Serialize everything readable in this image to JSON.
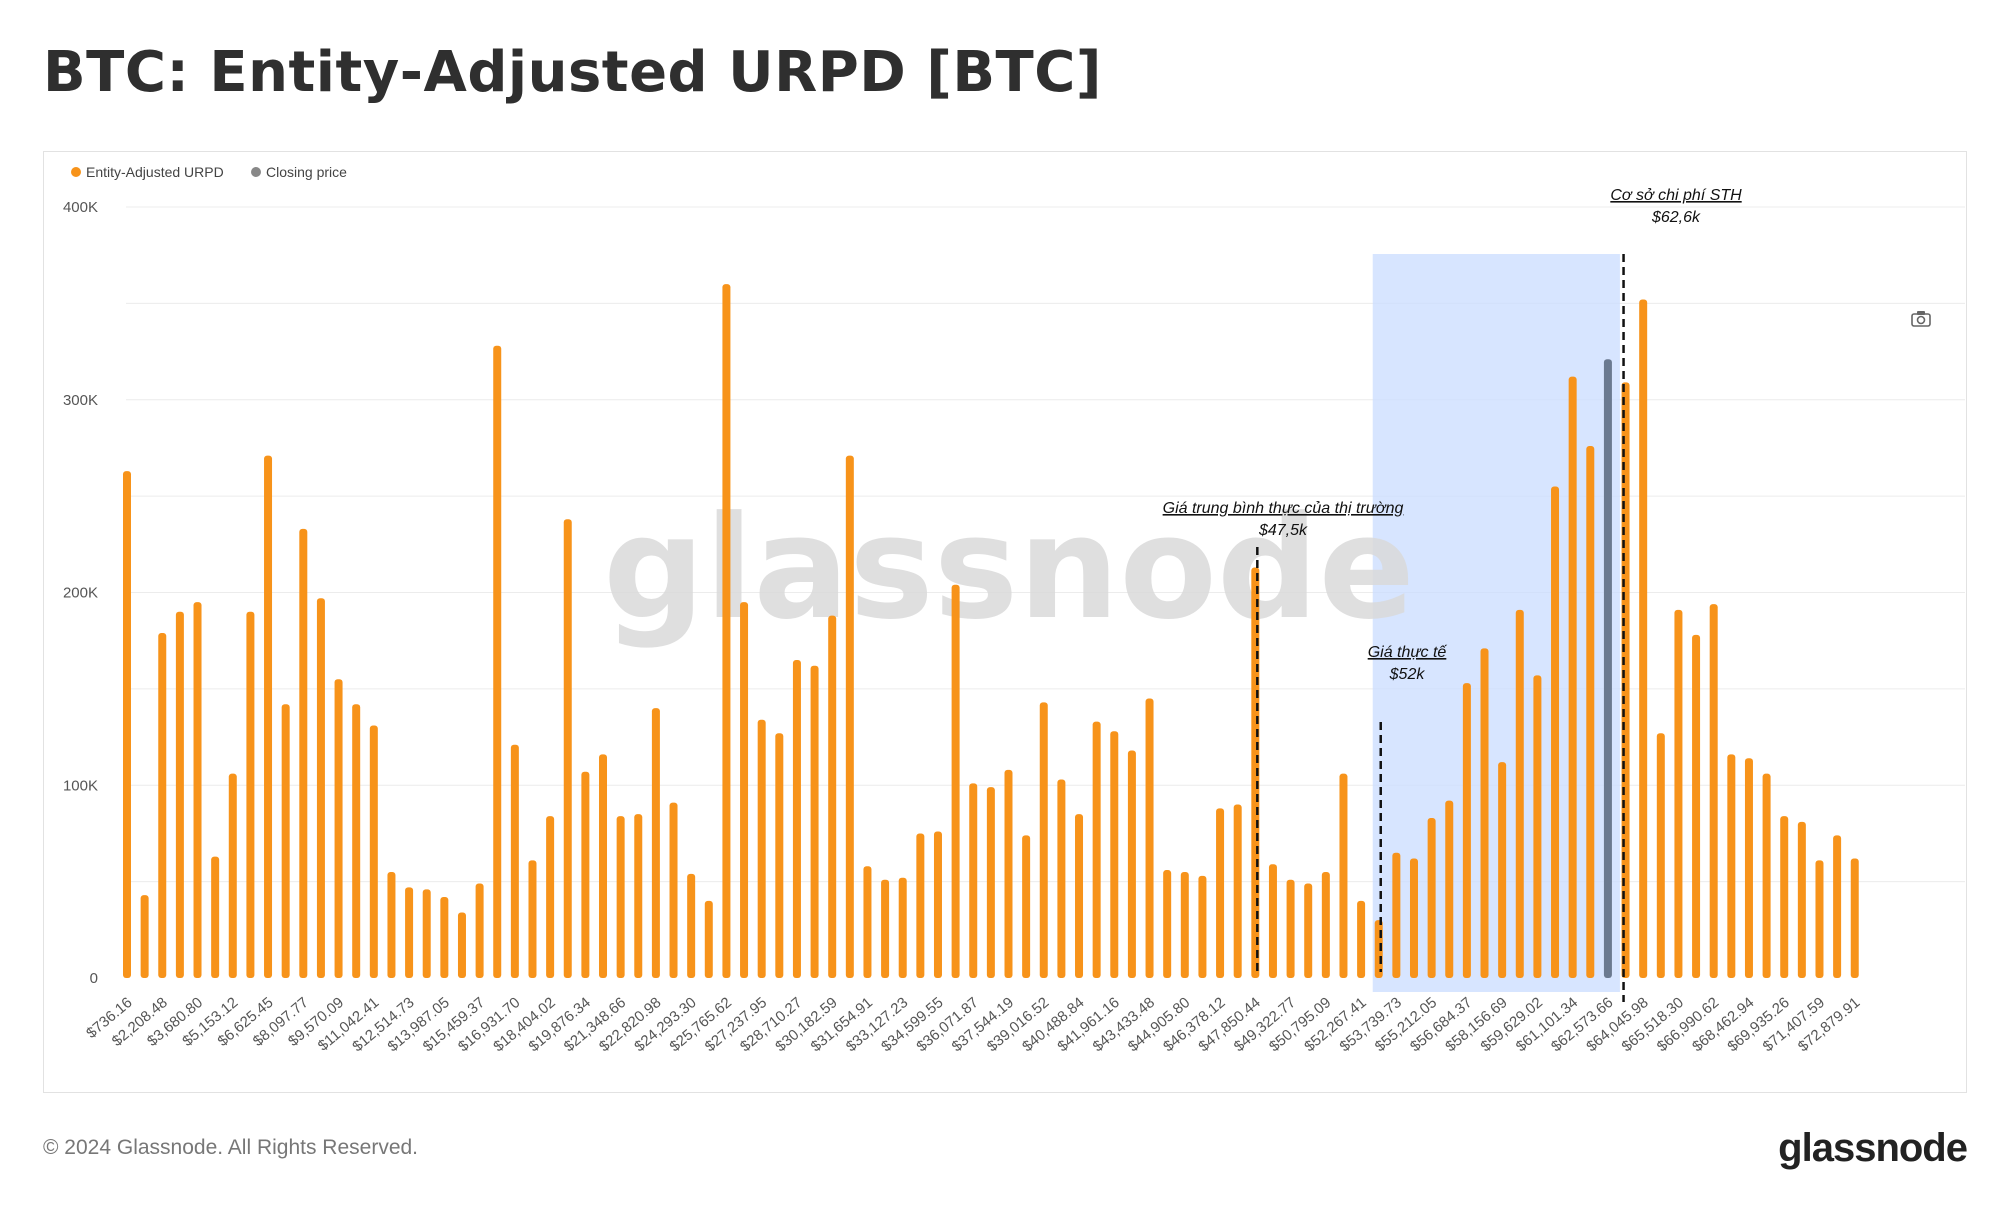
{
  "header": {
    "title": "BTC: Entity-Adjusted URPD [BTC]"
  },
  "footer": {
    "copyright": "© 2024 Glassnode. All Rights Reserved.",
    "logo_text": "glassnode"
  },
  "watermark": "glassnode",
  "colors": {
    "bar": "#f7931a",
    "closing": "#6b7a90",
    "highlight": "#c9dcff",
    "grid": "#ececec",
    "axis_text": "#555555"
  },
  "icons": {
    "camera": "camera-icon"
  },
  "chart_data": {
    "type": "bar",
    "legend": [
      {
        "name": "Entity-Adjusted URPD",
        "color": "#f7931a"
      },
      {
        "name": "Closing price",
        "color": "#888888"
      }
    ],
    "ylim": [
      0,
      400000
    ],
    "y_ticks": [
      0,
      100000,
      200000,
      300000,
      400000
    ],
    "y_tick_labels": [
      "0",
      "100K",
      "200K",
      "300K",
      "400K"
    ],
    "tick_labels": [
      "$736.16",
      "$2,208.48",
      "$3,680.80",
      "$5,153.12",
      "$6,625.45",
      "$8,097.77",
      "$9,570.09",
      "$11,042.41",
      "$12,514.73",
      "$13,987.05",
      "$15,459.37",
      "$16,931.70",
      "$18,404.02",
      "$19,876.34",
      "$21,348.66",
      "$22,820.98",
      "$24,293.30",
      "$25,765.62",
      "$27,237.95",
      "$28,710.27",
      "$30,182.59",
      "$31,654.91",
      "$33,127.23",
      "$34,599.55",
      "$36,071.87",
      "$37,544.19",
      "$39,016.52",
      "$40,488.84",
      "$41,961.16",
      "$43,433.48",
      "$44,905.80",
      "$46,378.12",
      "$47,850.44",
      "$49,322.77",
      "$50,795.09",
      "$52,267.41",
      "$53,739.73",
      "$55,212.05",
      "$56,684.37",
      "$58,156.69",
      "$59,629.02",
      "$61,101.34",
      "$62,573.66",
      "$64,045.98",
      "$65,518.30",
      "$66,990.62",
      "$68,462.94",
      "$69,935.26",
      "$71,407.59",
      "$72,879.91"
    ],
    "values": [
      263000,
      43000,
      179000,
      190000,
      195000,
      63000,
      106000,
      190000,
      271000,
      142000,
      233000,
      197000,
      155000,
      142000,
      131000,
      55000,
      47000,
      46000,
      42000,
      34000,
      49000,
      328000,
      121000,
      61000,
      84000,
      238000,
      107000,
      116000,
      84000,
      85000,
      140000,
      91000,
      54000,
      40000,
      360000,
      195000,
      134000,
      127000,
      165000,
      162000,
      188000,
      271000,
      58000,
      51000,
      52000,
      75000,
      76000,
      204000,
      101000,
      99000,
      108000,
      74000,
      143000,
      103000,
      85000,
      133000,
      128000,
      118000,
      145000,
      56000,
      55000,
      53000,
      88000,
      90000,
      213000,
      59000,
      51000,
      49000,
      55000,
      106000,
      40000,
      30000,
      65000,
      62000,
      83000,
      92000,
      153000,
      171000,
      112000,
      191000,
      157000,
      255000,
      312000,
      276000,
      321000,
      309000,
      352000,
      127000,
      191000,
      178000,
      194000,
      116000,
      114000,
      106000,
      84000,
      81000,
      61000,
      74000,
      62000
    ],
    "closing_price_index": 84,
    "highlight_range": {
      "from_index": 71,
      "to_index": 84
    },
    "annotations": [
      {
        "line1": "Giá trung bình thực của thị trường",
        "line2": "$47,5k",
        "bar_index": 64
      },
      {
        "line1": "Giá thực tế",
        "line2": "$52k",
        "bar_index": 71
      },
      {
        "line1": "Cơ sở chi phí STH",
        "line2": "$62,6k",
        "bar_index": 85
      }
    ]
  }
}
